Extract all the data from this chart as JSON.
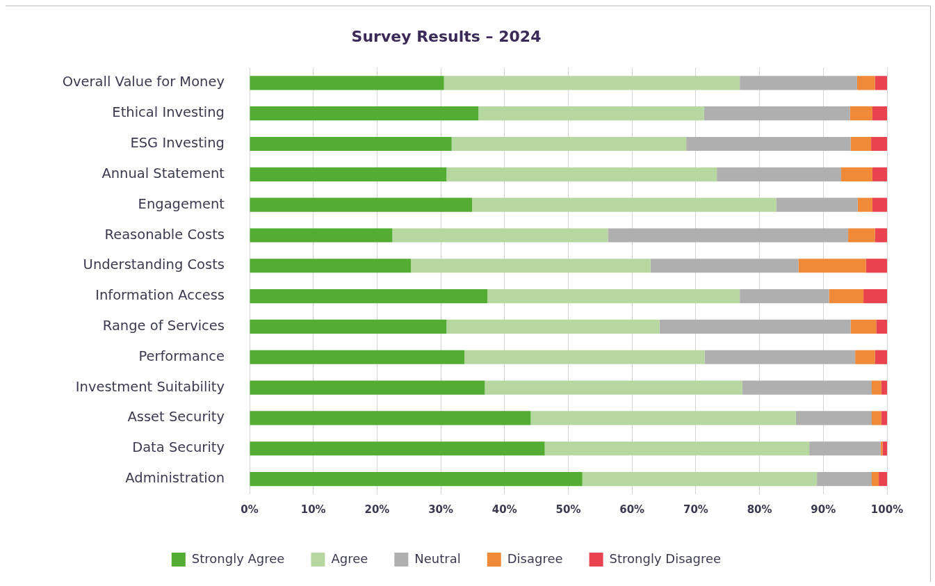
{
  "chart_data": {
    "type": "bar",
    "orientation": "horizontal",
    "stacked": true,
    "title": "Survey Results – 2024",
    "categories": [
      "Overall Value for Money",
      "Ethical Investing",
      "ESG Investing",
      "Annual Statement",
      "Engagement",
      "Reasonable Costs",
      "Understanding Costs",
      "Information Access",
      "Range of Services",
      "Performance",
      "Investment Suitability",
      "Asset Security",
      "Data Security",
      "Administration"
    ],
    "series": [
      {
        "name": "Strongly Agree",
        "color": "#52ad32",
        "values": [
          30.5,
          35.9,
          31.7,
          30.9,
          34.9,
          22.4,
          25.3,
          37.3,
          30.9,
          33.7,
          36.9,
          44.1,
          46.3,
          52.2
        ]
      },
      {
        "name": "Agree",
        "color": "#b6d7a0",
        "values": [
          46.4,
          35.4,
          36.8,
          42.4,
          47.7,
          33.8,
          37.6,
          39.6,
          33.4,
          37.7,
          40.4,
          41.6,
          41.5,
          36.8
        ]
      },
      {
        "name": "Neutral",
        "color": "#afafaf",
        "values": [
          18.4,
          22.9,
          25.8,
          19.5,
          12.8,
          37.7,
          23.2,
          14.0,
          30.0,
          23.6,
          20.3,
          11.9,
          11.2,
          8.6
        ]
      },
      {
        "name": "Disagree",
        "color": "#f08a38",
        "values": [
          2.8,
          3.5,
          3.2,
          4.9,
          2.3,
          4.2,
          10.6,
          5.4,
          4.0,
          3.1,
          1.5,
          1.5,
          0.3,
          1.1
        ]
      },
      {
        "name": "Strongly Disagree",
        "color": "#e8434f",
        "values": [
          1.9,
          2.3,
          2.5,
          2.3,
          2.3,
          1.9,
          3.3,
          3.7,
          1.7,
          1.9,
          0.9,
          0.9,
          0.7,
          1.3
        ]
      }
    ],
    "xlim": [
      0,
      100
    ],
    "xticks": [
      {
        "value": 0,
        "label": "0%"
      },
      {
        "value": 10,
        "label": "10%"
      },
      {
        "value": 20,
        "label": "20%"
      },
      {
        "value": 30,
        "label": "30%"
      },
      {
        "value": 40,
        "label": "40%"
      },
      {
        "value": 50,
        "label": "50%"
      },
      {
        "value": 60,
        "label": "60%"
      },
      {
        "value": 70,
        "label": "70%"
      },
      {
        "value": 80,
        "label": "80%"
      },
      {
        "value": 90,
        "label": "90%"
      },
      {
        "value": 100,
        "label": "100%"
      }
    ],
    "grid": "x",
    "legend": "bottom"
  }
}
